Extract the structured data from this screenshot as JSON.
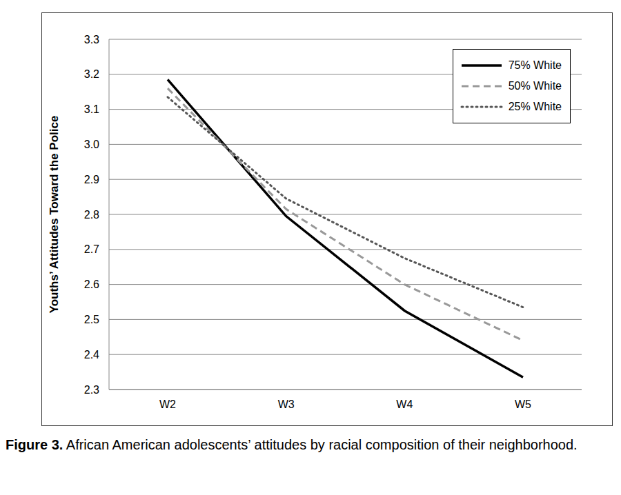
{
  "chart_data": {
    "type": "line",
    "title": "Figure 3. African American adolescents’ attitudes by racial composition of their neighborhood.",
    "y_label": "Youths’ Attitudes Toward the Police",
    "categories": [
      "W2",
      "W3",
      "W4",
      "W5"
    ],
    "series": [
      {
        "name": "75% White",
        "color": "#000000",
        "line_style": "solid",
        "values": [
          3.185,
          2.795,
          2.525,
          2.335
        ]
      },
      {
        "name": "50% White",
        "color": "#999999",
        "line_style": "dashed",
        "values": [
          3.16,
          2.815,
          2.6,
          2.44
        ]
      },
      {
        "name": "25% White",
        "color": "#555555",
        "line_style": "dotted",
        "values": [
          3.135,
          2.845,
          2.675,
          2.535
        ]
      }
    ],
    "ylim": [
      2.3,
      3.3
    ],
    "yticks": [
      2.3,
      2.4,
      2.5,
      2.6,
      2.7,
      2.8,
      2.9,
      {
        "value": 3,
        "label": "3.0"
      },
      3.1,
      3.2,
      3.3
    ],
    "grid": true,
    "legend": "upper right"
  }
}
